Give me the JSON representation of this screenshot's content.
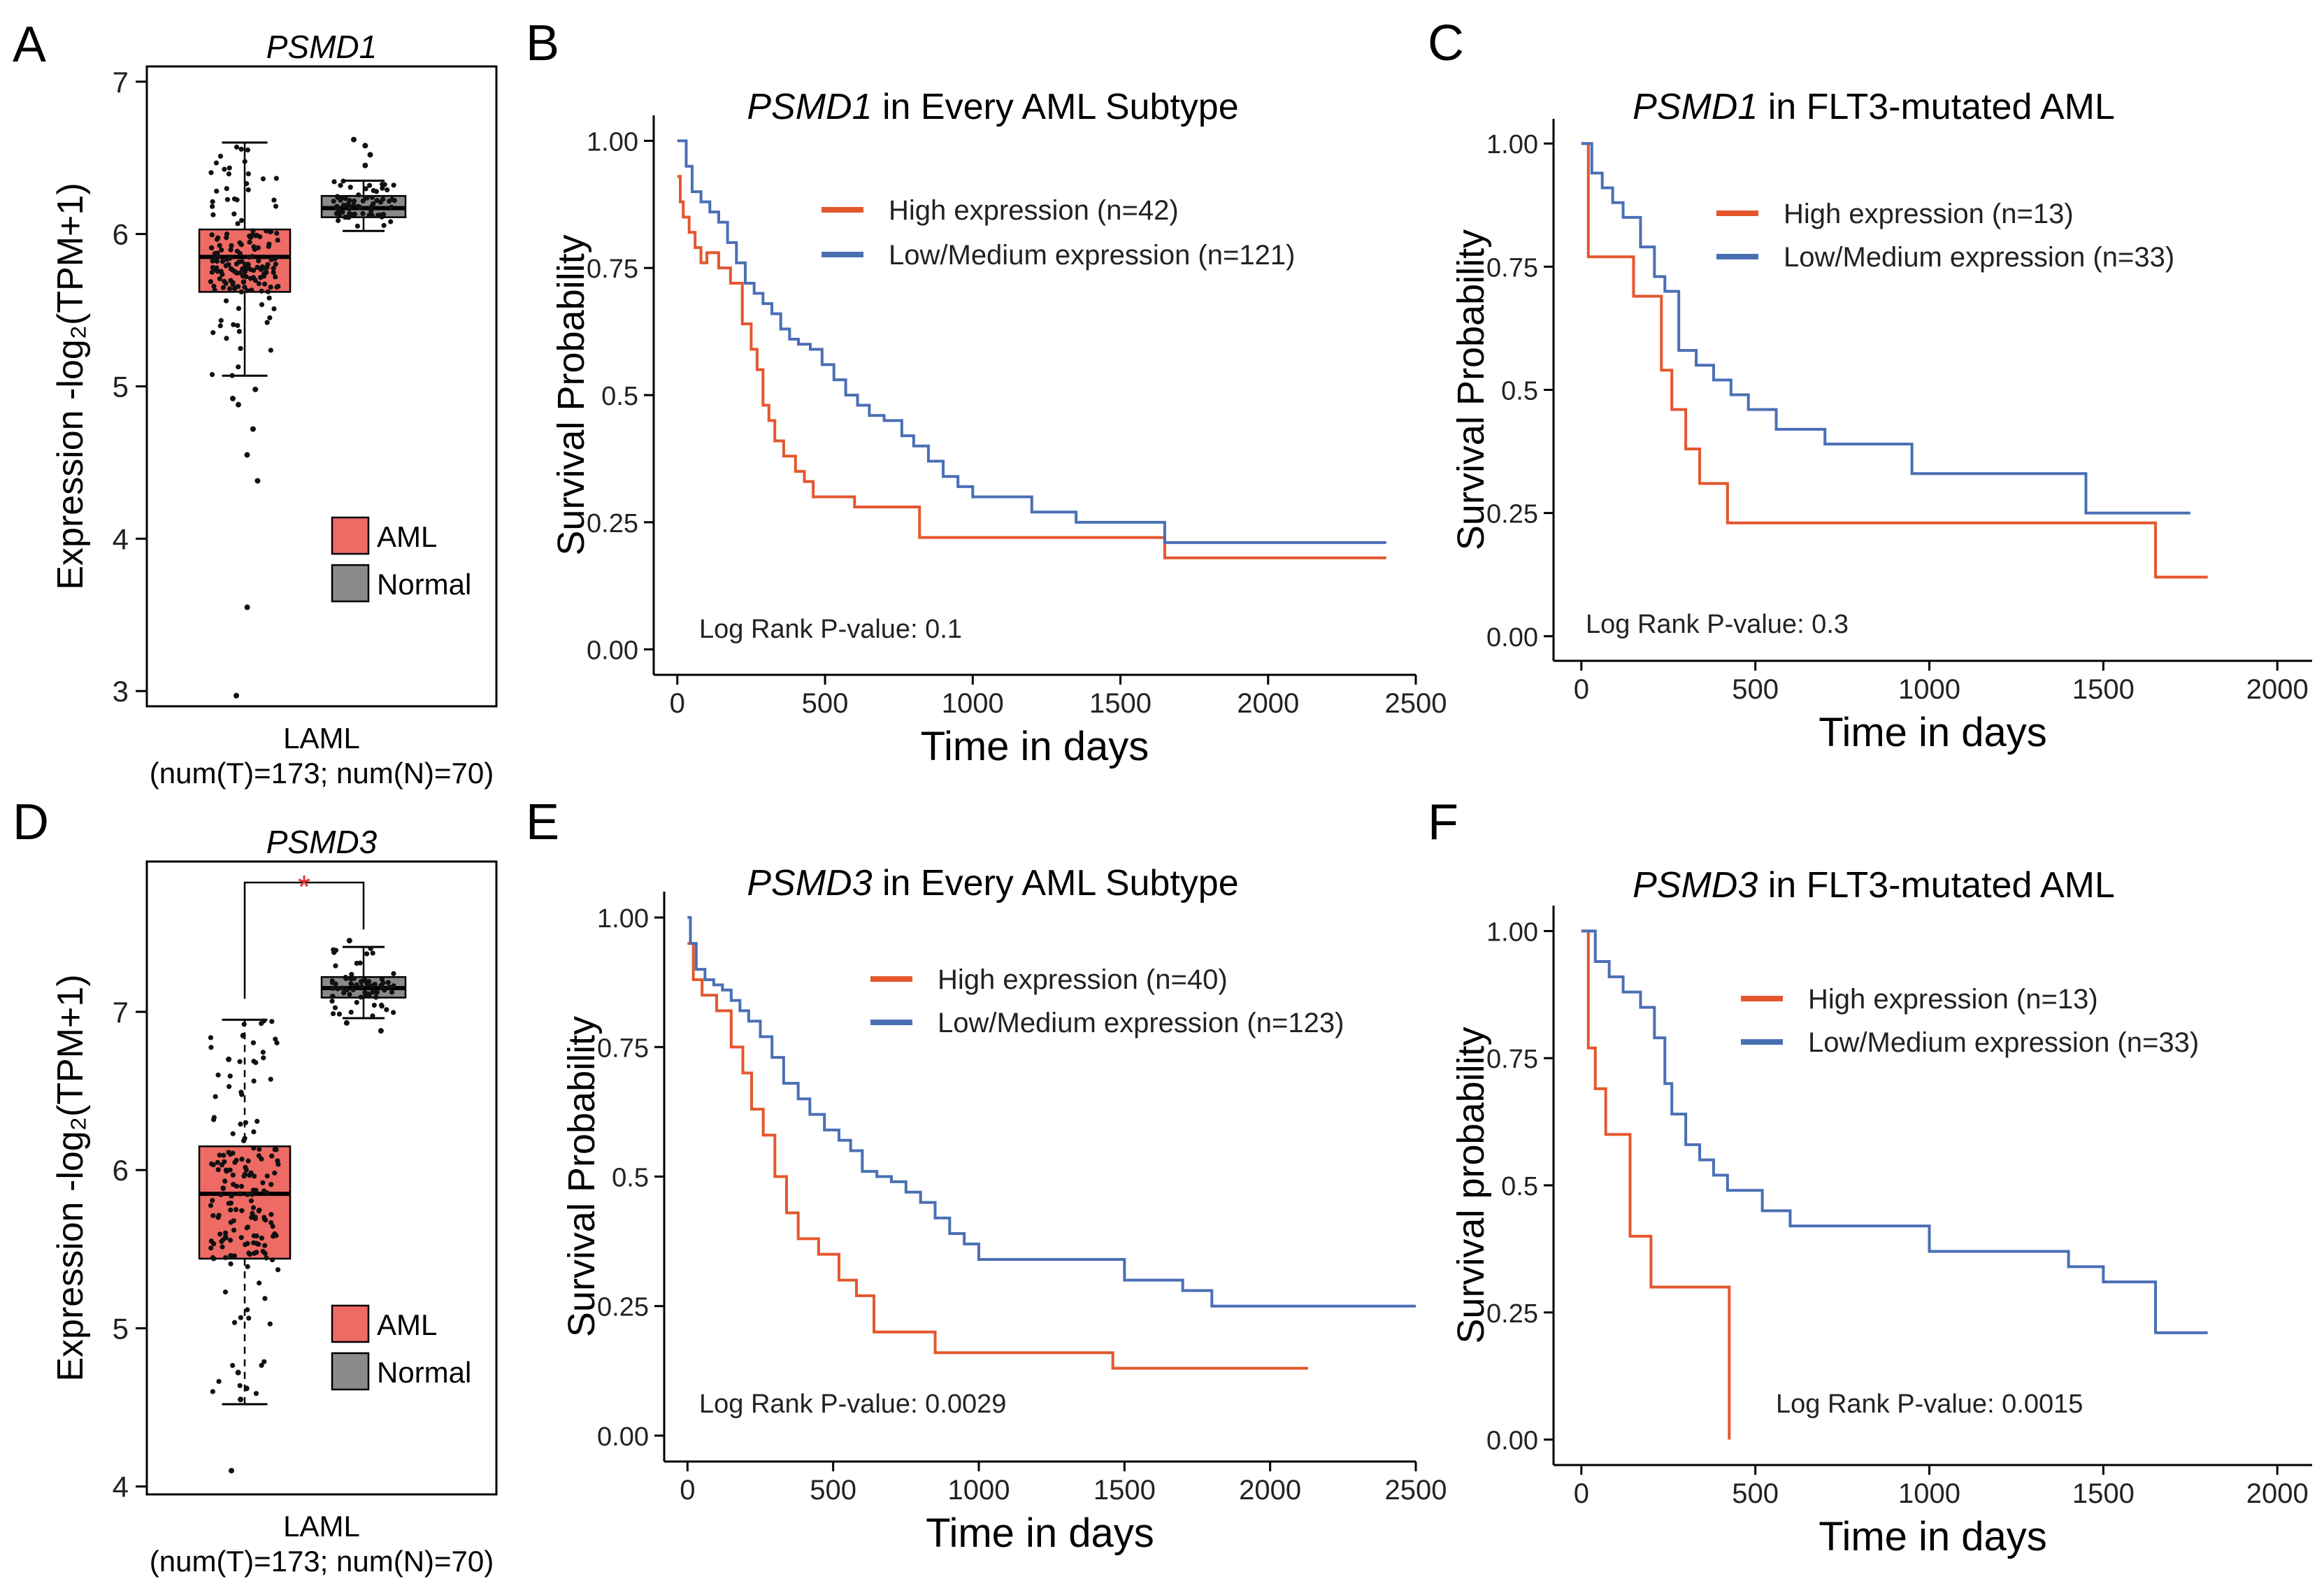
{
  "colors": {
    "aml_fill": "#ee6a64",
    "normal_fill": "#8a8a8a",
    "high": "#e4572e",
    "low": "#4a6fb5",
    "star": "#e03030"
  },
  "chart_data": [
    {
      "panel": "A",
      "type": "boxplot",
      "title": "PSMD1",
      "ylabel": "Expression -log₂(TPM+1)",
      "ylim": [
        2.9,
        7.1
      ],
      "yticks": [
        3,
        4,
        5,
        6,
        7
      ],
      "xlabel": "LAML",
      "xsub": "(num(T)=173; num(N)=70)",
      "legend": [
        "AML",
        "Normal"
      ],
      "significance": "",
      "boxes": [
        {
          "name": "AML",
          "q1": 5.62,
          "median": 5.85,
          "q3": 6.03,
          "whisker_low": 5.07,
          "whisker_high": 6.6,
          "points": [
            4.98,
            4.92,
            4.88,
            4.72,
            4.55,
            4.38,
            3.55,
            2.97
          ]
        },
        {
          "name": "Normal",
          "q1": 6.11,
          "median": 6.17,
          "q3": 6.25,
          "whisker_low": 6.02,
          "whisker_high": 6.35,
          "points": [
            6.62,
            6.58,
            6.52,
            6.45
          ]
        }
      ]
    },
    {
      "panel": "B",
      "type": "line",
      "title_gene": "PSMD1",
      "title_rest": " in Every AML Subtype",
      "xlabel": "Time in days",
      "ylabel": "Survival Probability",
      "xlim": [
        -80,
        2500
      ],
      "ylim": [
        -0.05,
        1.05
      ],
      "xticks": [
        0,
        500,
        1000,
        1500,
        2000,
        2500
      ],
      "yticks": [
        "0.00",
        "0.25",
        "0.5",
        "0.75",
        "1.00"
      ],
      "pvalue": "Log Rank P-value: 0.1",
      "series": [
        {
          "name": "High expression (n=42)",
          "x": [
            0,
            10,
            20,
            40,
            60,
            80,
            100,
            140,
            180,
            220,
            250,
            270,
            290,
            310,
            330,
            360,
            400,
            430,
            460,
            520,
            600,
            650,
            700,
            820,
            1000,
            1250,
            1500,
            1650,
            1700,
            2250,
            2400
          ],
          "y": [
            0.93,
            0.88,
            0.85,
            0.82,
            0.79,
            0.76,
            0.78,
            0.75,
            0.72,
            0.64,
            0.59,
            0.55,
            0.48,
            0.45,
            0.41,
            0.38,
            0.35,
            0.33,
            0.3,
            0.3,
            0.28,
            0.28,
            0.28,
            0.22,
            0.22,
            0.22,
            0.22,
            0.18,
            0.18,
            0.18,
            0.18
          ]
        },
        {
          "name": "Low/Medium expression (n=121)",
          "x": [
            0,
            30,
            50,
            80,
            110,
            140,
            170,
            200,
            230,
            260,
            290,
            320,
            350,
            380,
            410,
            450,
            490,
            530,
            570,
            610,
            650,
            700,
            760,
            800,
            850,
            900,
            950,
            1000,
            1100,
            1200,
            1350,
            1450,
            1550,
            1650,
            1800,
            2000,
            2200,
            2400
          ],
          "y": [
            1.0,
            0.95,
            0.9,
            0.88,
            0.86,
            0.84,
            0.8,
            0.76,
            0.72,
            0.7,
            0.68,
            0.66,
            0.63,
            0.61,
            0.6,
            0.59,
            0.56,
            0.53,
            0.5,
            0.48,
            0.46,
            0.45,
            0.42,
            0.4,
            0.37,
            0.34,
            0.32,
            0.3,
            0.3,
            0.27,
            0.25,
            0.25,
            0.25,
            0.21,
            0.21,
            0.21,
            0.21,
            0.21
          ]
        }
      ]
    },
    {
      "panel": "C",
      "type": "line",
      "title_gene": "PSMD1",
      "title_rest": " in FLT3-mutated AML",
      "xlabel": "Time in days",
      "ylabel": "Survival Probability",
      "xlim": [
        -80,
        2100
      ],
      "ylim": [
        -0.05,
        1.05
      ],
      "xticks": [
        0,
        500,
        1000,
        1500,
        2000
      ],
      "yticks": [
        "0.00",
        "0.25",
        "0.5",
        "0.75",
        "1.00"
      ],
      "pvalue": "Log Rank P-value: 0.3",
      "series": [
        {
          "name": "High expression (n=13)",
          "x": [
            0,
            20,
            40,
            150,
            190,
            230,
            260,
            300,
            340,
            420,
            700,
            1000,
            1500,
            1650,
            1800
          ],
          "y": [
            1.0,
            0.77,
            0.77,
            0.69,
            0.69,
            0.54,
            0.46,
            0.38,
            0.31,
            0.23,
            0.23,
            0.23,
            0.23,
            0.12,
            0.12
          ]
        },
        {
          "name": "Low/Medium expression (n=33)",
          "x": [
            0,
            30,
            60,
            90,
            120,
            170,
            210,
            240,
            280,
            330,
            380,
            430,
            480,
            560,
            700,
            900,
            950,
            1200,
            1400,
            1450,
            1750
          ],
          "y": [
            1.0,
            0.94,
            0.91,
            0.88,
            0.85,
            0.79,
            0.73,
            0.7,
            0.58,
            0.55,
            0.52,
            0.49,
            0.46,
            0.42,
            0.39,
            0.39,
            0.33,
            0.33,
            0.33,
            0.25,
            0.25
          ]
        }
      ]
    },
    {
      "panel": "D",
      "type": "boxplot",
      "title": "PSMD3",
      "ylabel": "Expression -log₂(TPM+1)",
      "ylim": [
        3.95,
        7.95
      ],
      "yticks": [
        4,
        5,
        6,
        7
      ],
      "xlabel": "LAML",
      "xsub": "(num(T)=173; num(N)=70)",
      "legend": [
        "AML",
        "Normal"
      ],
      "significance": "*",
      "boxes": [
        {
          "name": "AML",
          "q1": 5.44,
          "median": 5.85,
          "q3": 6.15,
          "whisker_low": 4.52,
          "whisker_high": 6.95,
          "points": [
            4.1,
            4.55,
            4.62,
            4.72,
            6.85,
            6.7
          ]
        },
        {
          "name": "Normal",
          "q1": 7.09,
          "median": 7.15,
          "q3": 7.22,
          "whisker_low": 6.96,
          "whisker_high": 7.41,
          "points": [
            7.45,
            6.88,
            6.93
          ]
        }
      ]
    },
    {
      "panel": "E",
      "type": "line",
      "title_gene": "PSMD3",
      "title_rest": " in Every AML Subtype",
      "xlabel": "Time in days",
      "ylabel": "Survival Probability",
      "xlim": [
        -80,
        2500
      ],
      "ylim": [
        -0.05,
        1.05
      ],
      "xticks": [
        0,
        500,
        1000,
        1500,
        2000,
        2500
      ],
      "yticks": [
        "0.00",
        "0.25",
        "0.5",
        "0.75",
        "1.00"
      ],
      "pvalue": "Log Rank P-value: 0.0029",
      "series": [
        {
          "name": "High expression (n=40)",
          "x": [
            0,
            20,
            50,
            100,
            150,
            190,
            220,
            260,
            300,
            340,
            380,
            450,
            520,
            580,
            640,
            720,
            850,
            1000,
            1200,
            1460,
            1600,
            2000,
            2130
          ],
          "y": [
            0.95,
            0.88,
            0.85,
            0.82,
            0.75,
            0.7,
            0.63,
            0.58,
            0.5,
            0.43,
            0.38,
            0.35,
            0.3,
            0.27,
            0.2,
            0.2,
            0.16,
            0.16,
            0.16,
            0.13,
            0.13,
            0.13,
            0.13
          ]
        },
        {
          "name": "Low/Medium expression (n=123)",
          "x": [
            0,
            10,
            30,
            60,
            90,
            120,
            150,
            180,
            210,
            250,
            290,
            330,
            380,
            420,
            470,
            520,
            560,
            600,
            650,
            700,
            750,
            800,
            850,
            900,
            950,
            1000,
            1100,
            1200,
            1300,
            1400,
            1500,
            1600,
            1700,
            1800,
            2000,
            2200,
            2500
          ],
          "y": [
            1.0,
            0.95,
            0.9,
            0.88,
            0.87,
            0.86,
            0.84,
            0.82,
            0.8,
            0.77,
            0.73,
            0.68,
            0.65,
            0.62,
            0.59,
            0.57,
            0.55,
            0.51,
            0.5,
            0.49,
            0.47,
            0.45,
            0.42,
            0.39,
            0.37,
            0.34,
            0.34,
            0.34,
            0.34,
            0.34,
            0.3,
            0.3,
            0.28,
            0.25,
            0.25,
            0.25,
            0.25
          ]
        }
      ]
    },
    {
      "panel": "F",
      "type": "line",
      "title_gene": "PSMD3",
      "title_rest": " in FLT3-mutated AML",
      "xlabel": "Time in days",
      "ylabel": "Survival probability",
      "xlim": [
        -80,
        2100
      ],
      "ylim": [
        -0.05,
        1.05
      ],
      "xticks": [
        0,
        500,
        1000,
        1500,
        2000
      ],
      "yticks": [
        "0.00",
        "0.25",
        "0.5",
        "0.75",
        "1.00"
      ],
      "pvalue": "Log Rank P-value: 0.0015",
      "series": [
        {
          "name": "High expression (n=13)",
          "x": [
            0,
            20,
            40,
            70,
            140,
            200,
            290,
            420,
            425
          ],
          "y": [
            1.0,
            0.77,
            0.69,
            0.6,
            0.4,
            0.3,
            0.3,
            0.3,
            0.0
          ]
        },
        {
          "name": "Low/Medium expression (n=33)",
          "x": [
            0,
            40,
            80,
            120,
            170,
            210,
            240,
            260,
            300,
            340,
            380,
            420,
            460,
            520,
            600,
            700,
            900,
            1000,
            1200,
            1400,
            1500,
            1600,
            1650,
            1800
          ],
          "y": [
            1.0,
            0.94,
            0.91,
            0.88,
            0.85,
            0.79,
            0.7,
            0.64,
            0.58,
            0.55,
            0.52,
            0.49,
            0.49,
            0.45,
            0.42,
            0.42,
            0.42,
            0.37,
            0.37,
            0.34,
            0.31,
            0.31,
            0.21,
            0.21
          ]
        }
      ]
    }
  ]
}
